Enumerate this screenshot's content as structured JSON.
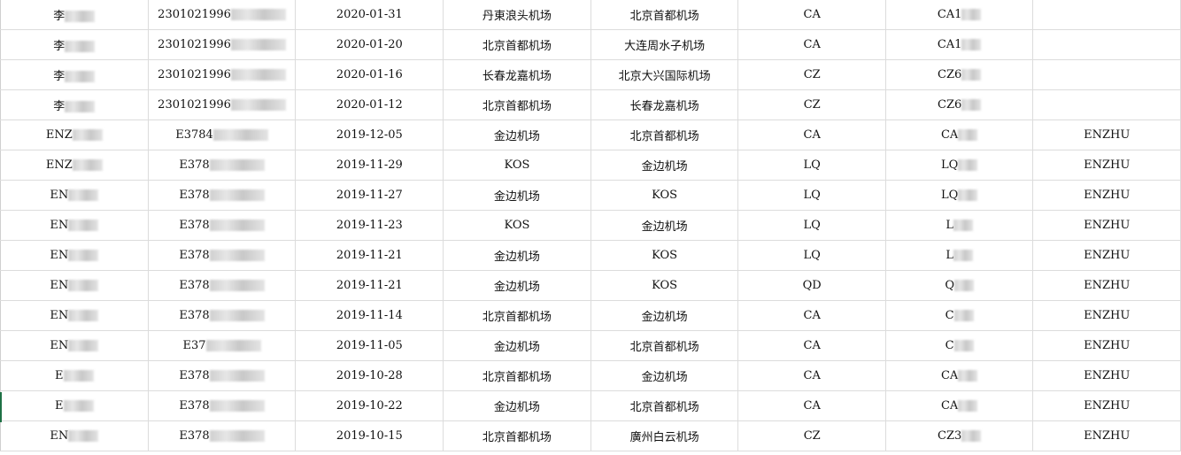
{
  "rows": [
    {
      "name": "李",
      "id": "2301021996",
      "date": "2020-01-31",
      "from": "丹東浪头机场",
      "to": "北京首都机场",
      "airline": "CA",
      "flight": "CA1",
      "passenger": ""
    },
    {
      "name": "李",
      "id": "2301021996",
      "date": "2020-01-20",
      "from": "北京首都机场",
      "to": "大连周水子机场",
      "airline": "CA",
      "flight": "CA1",
      "passenger": ""
    },
    {
      "name": "李",
      "id": "2301021996",
      "date": "2020-01-16",
      "from": "长春龙嘉机场",
      "to": "北京大兴国际机场",
      "airline": "CZ",
      "flight": "CZ6",
      "passenger": ""
    },
    {
      "name": "李",
      "id": "2301021996",
      "date": "2020-01-12",
      "from": "北京首都机场",
      "to": "长春龙嘉机场",
      "airline": "CZ",
      "flight": "CZ6",
      "passenger": ""
    },
    {
      "name": "ENZ",
      "id": "E3784",
      "date": "2019-12-05",
      "from": "金边机场",
      "to": "北京首都机场",
      "airline": "CA",
      "flight": "CA",
      "passenger": "ENZHU"
    },
    {
      "name": "ENZ",
      "id": "E378",
      "date": "2019-11-29",
      "from": "KOS",
      "to": "金边机场",
      "airline": "LQ",
      "flight": "LQ",
      "passenger": "ENZHU"
    },
    {
      "name": "EN",
      "id": "E378",
      "date": "2019-11-27",
      "from": "金边机场",
      "to": "KOS",
      "airline": "LQ",
      "flight": "LQ",
      "passenger": "ENZHU"
    },
    {
      "name": "EN",
      "id": "E378",
      "date": "2019-11-23",
      "from": "KOS",
      "to": "金边机场",
      "airline": "LQ",
      "flight": "L",
      "passenger": "ENZHU"
    },
    {
      "name": "EN",
      "id": "E378",
      "date": "2019-11-21",
      "from": "金边机场",
      "to": "KOS",
      "airline": "LQ",
      "flight": "L",
      "passenger": "ENZHU"
    },
    {
      "name": "EN",
      "id": "E378",
      "date": "2019-11-21",
      "from": "金边机场",
      "to": "KOS",
      "airline": "QD",
      "flight": "Q",
      "passenger": "ENZHU"
    },
    {
      "name": "EN",
      "id": "E378",
      "date": "2019-11-14",
      "from": "北京首都机场",
      "to": "金边机场",
      "airline": "CA",
      "flight": "C",
      "passenger": "ENZHU"
    },
    {
      "name": "EN",
      "id": "E37",
      "date": "2019-11-05",
      "from": "金边机场",
      "to": "北京首都机场",
      "airline": "CA",
      "flight": "C",
      "passenger": "ENZHU"
    },
    {
      "name": "E",
      "id": "E378",
      "date": "2019-10-28",
      "from": "北京首都机场",
      "to": "金边机场",
      "airline": "CA",
      "flight": "CA",
      "passenger": "ENZHU"
    },
    {
      "name": "E",
      "id": "E378",
      "date": "2019-10-22",
      "from": "金边机场",
      "to": "北京首都机场",
      "airline": "CA",
      "flight": "CA",
      "passenger": "ENZHU"
    },
    {
      "name": "EN",
      "id": "E378",
      "date": "2019-10-15",
      "from": "北京首都机场",
      "to": "廣州白云机场",
      "airline": "CZ",
      "flight": "CZ3",
      "passenger": "ENZHU"
    }
  ]
}
